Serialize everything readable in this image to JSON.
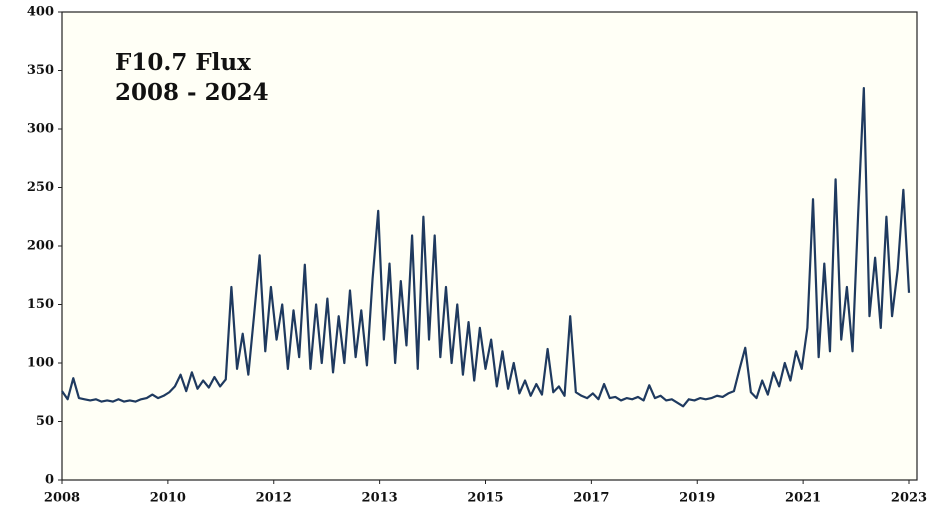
{
  "chart_data": {
    "type": "line",
    "title": "F10.7 Flux",
    "subtitle": "2008 - 2024",
    "x": [
      2008,
      2008.1,
      2008.2,
      2008.3,
      2008.4,
      2008.5,
      2008.6,
      2008.7,
      2008.8,
      2008.9,
      2009,
      2009.1,
      2009.2,
      2009.3,
      2009.4,
      2009.5,
      2009.6,
      2009.7,
      2009.8,
      2009.9,
      2010,
      2010.1,
      2010.2,
      2010.3,
      2010.4,
      2010.5,
      2010.6,
      2010.7,
      2010.8,
      2010.9,
      2011,
      2011.1,
      2011.2,
      2011.3,
      2011.4,
      2011.5,
      2011.6,
      2011.7,
      2011.8,
      2011.9,
      2012,
      2012.1,
      2012.2,
      2012.3,
      2012.4,
      2012.5,
      2012.6,
      2012.7,
      2012.8,
      2012.9,
      2013,
      2013.1,
      2013.2,
      2013.3,
      2013.4,
      2013.5,
      2013.6,
      2013.7,
      2013.8,
      2013.9,
      2014,
      2014.1,
      2014.2,
      2014.3,
      2014.4,
      2014.5,
      2014.6,
      2014.7,
      2014.8,
      2014.9,
      2015,
      2015.1,
      2015.2,
      2015.3,
      2015.4,
      2015.5,
      2015.6,
      2015.7,
      2015.8,
      2015.9,
      2016,
      2016.1,
      2016.2,
      2016.3,
      2016.4,
      2016.5,
      2016.6,
      2016.7,
      2016.8,
      2016.9,
      2017,
      2017.1,
      2017.2,
      2017.3,
      2017.4,
      2017.5,
      2017.6,
      2017.7,
      2017.8,
      2017.9,
      2018,
      2018.1,
      2018.2,
      2018.3,
      2018.4,
      2018.5,
      2018.6,
      2018.7,
      2018.8,
      2018.9,
      2019,
      2019.1,
      2019.2,
      2019.3,
      2019.4,
      2019.5,
      2019.6,
      2019.7,
      2019.8,
      2019.9,
      2020,
      2020.1,
      2020.2,
      2020.3,
      2020.4,
      2020.5,
      2020.6,
      2020.7,
      2020.8,
      2020.9,
      2021,
      2021.1,
      2021.2,
      2021.3,
      2021.4,
      2021.5,
      2021.6,
      2021.7,
      2021.8,
      2021.9,
      2022,
      2022.1,
      2022.2,
      2022.3,
      2022.4,
      2022.5,
      2022.6,
      2022.7,
      2022.8,
      2022.9,
      2023
    ],
    "series": [
      {
        "color": "#1f3a5f",
        "values": [
          76,
          69,
          87,
          70,
          69,
          68,
          69,
          67,
          68,
          67,
          69,
          67,
          68,
          67,
          69,
          70,
          73,
          70,
          72,
          75,
          80,
          90,
          76,
          92,
          78,
          85,
          79,
          88,
          80,
          86,
          165,
          95,
          125,
          90,
          140,
          192,
          110,
          165,
          120,
          150,
          95,
          145,
          105,
          184,
          95,
          150,
          100,
          155,
          92,
          140,
          100,
          162,
          105,
          145,
          98,
          172,
          230,
          120,
          185,
          100,
          170,
          115,
          209,
          95,
          225,
          120,
          209,
          105,
          165,
          100,
          150,
          90,
          135,
          85,
          130,
          95,
          120,
          80,
          110,
          78,
          100,
          74,
          85,
          72,
          82,
          73,
          112,
          75,
          80,
          72,
          140,
          75,
          72,
          70,
          74,
          69,
          82,
          70,
          71,
          68,
          70,
          69,
          71,
          68,
          81,
          70,
          72,
          68,
          69,
          66,
          63,
          69,
          68,
          70,
          69,
          70,
          72,
          71,
          74,
          76,
          95,
          113,
          75,
          70,
          85,
          73,
          92,
          80,
          100,
          85,
          110,
          95,
          130,
          240,
          105,
          185,
          110,
          257,
          120,
          165,
          110,
          228,
          335,
          140,
          190,
          130,
          225,
          140,
          180,
          248,
          160
        ]
      }
    ],
    "xlim": [
      2008,
      2023
    ],
    "xticks": [
      {
        "value": 2008,
        "label": "2008"
      },
      {
        "value": 2009.875,
        "label": "2010"
      },
      {
        "value": 2011.75,
        "label": "2012"
      },
      {
        "value": 2013.625,
        "label": "2013"
      },
      {
        "value": 2015.5,
        "label": "2015"
      },
      {
        "value": 2017.375,
        "label": "2017"
      },
      {
        "value": 2019.25,
        "label": "2019"
      },
      {
        "value": 2021.125,
        "label": "2021"
      },
      {
        "value": 2023,
        "label": "2023"
      }
    ],
    "ylim": [
      0,
      400
    ],
    "yticks": [
      0,
      50,
      100,
      150,
      200,
      250,
      300,
      350,
      400
    ],
    "grid": false
  }
}
